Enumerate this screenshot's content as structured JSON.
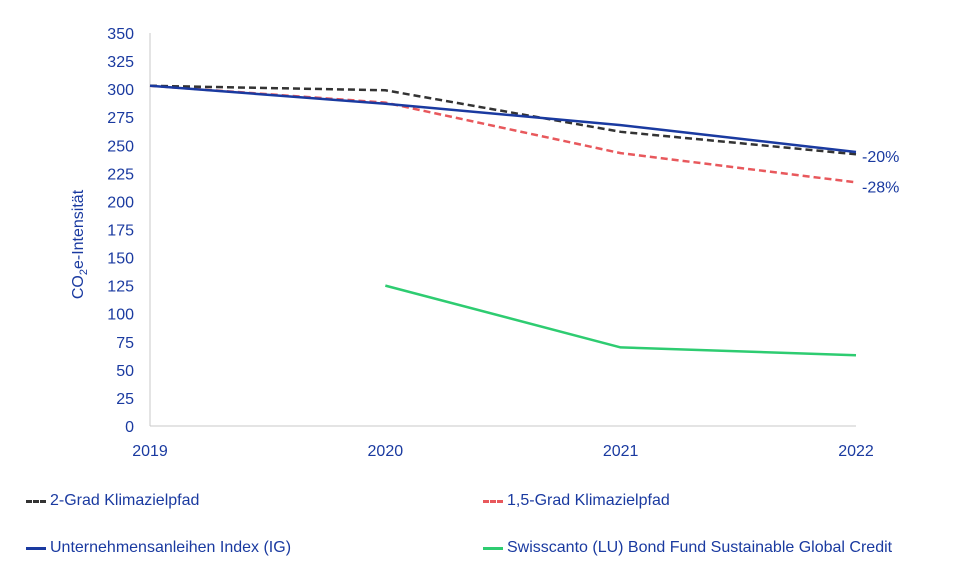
{
  "chart_data": {
    "type": "line",
    "x": [
      "2019",
      "2020",
      "2021",
      "2022"
    ],
    "ylabel": {
      "prefix": "CO",
      "subscript": "2",
      "suffix": "e-Intensität"
    },
    "ylim": [
      0,
      350
    ],
    "yticks": [
      0,
      25,
      50,
      75,
      100,
      125,
      150,
      175,
      200,
      225,
      250,
      275,
      300,
      325,
      350
    ],
    "grid": false,
    "legend_position": "bottom",
    "series": [
      {
        "key": "two_degree",
        "name": "2-Grad Klimazielpfad",
        "color": "#333333",
        "dash": true,
        "values": [
          303,
          299,
          262,
          242
        ]
      },
      {
        "key": "one_five_degree",
        "name": "1,5-Grad Klimazielpfad",
        "color": "#e8585c",
        "dash": true,
        "values": [
          303,
          288,
          243,
          217
        ]
      },
      {
        "key": "index",
        "name": "Unternehmensanleihen Index (IG)",
        "color": "#1a3aa0",
        "dash": false,
        "values": [
          303,
          287,
          268,
          244
        ]
      },
      {
        "key": "fund",
        "name": "Swisscanto (LU) Bond Fund Sustainable Global Credit",
        "color": "#2ecc71",
        "dash": false,
        "values": [
          null,
          125,
          70,
          63
        ]
      }
    ],
    "annotations": [
      {
        "text": "-20%",
        "series": "index",
        "x": "2022",
        "y": 244
      },
      {
        "text": "-28%",
        "series": "one_five_degree",
        "x": "2022",
        "y": 217
      }
    ]
  }
}
